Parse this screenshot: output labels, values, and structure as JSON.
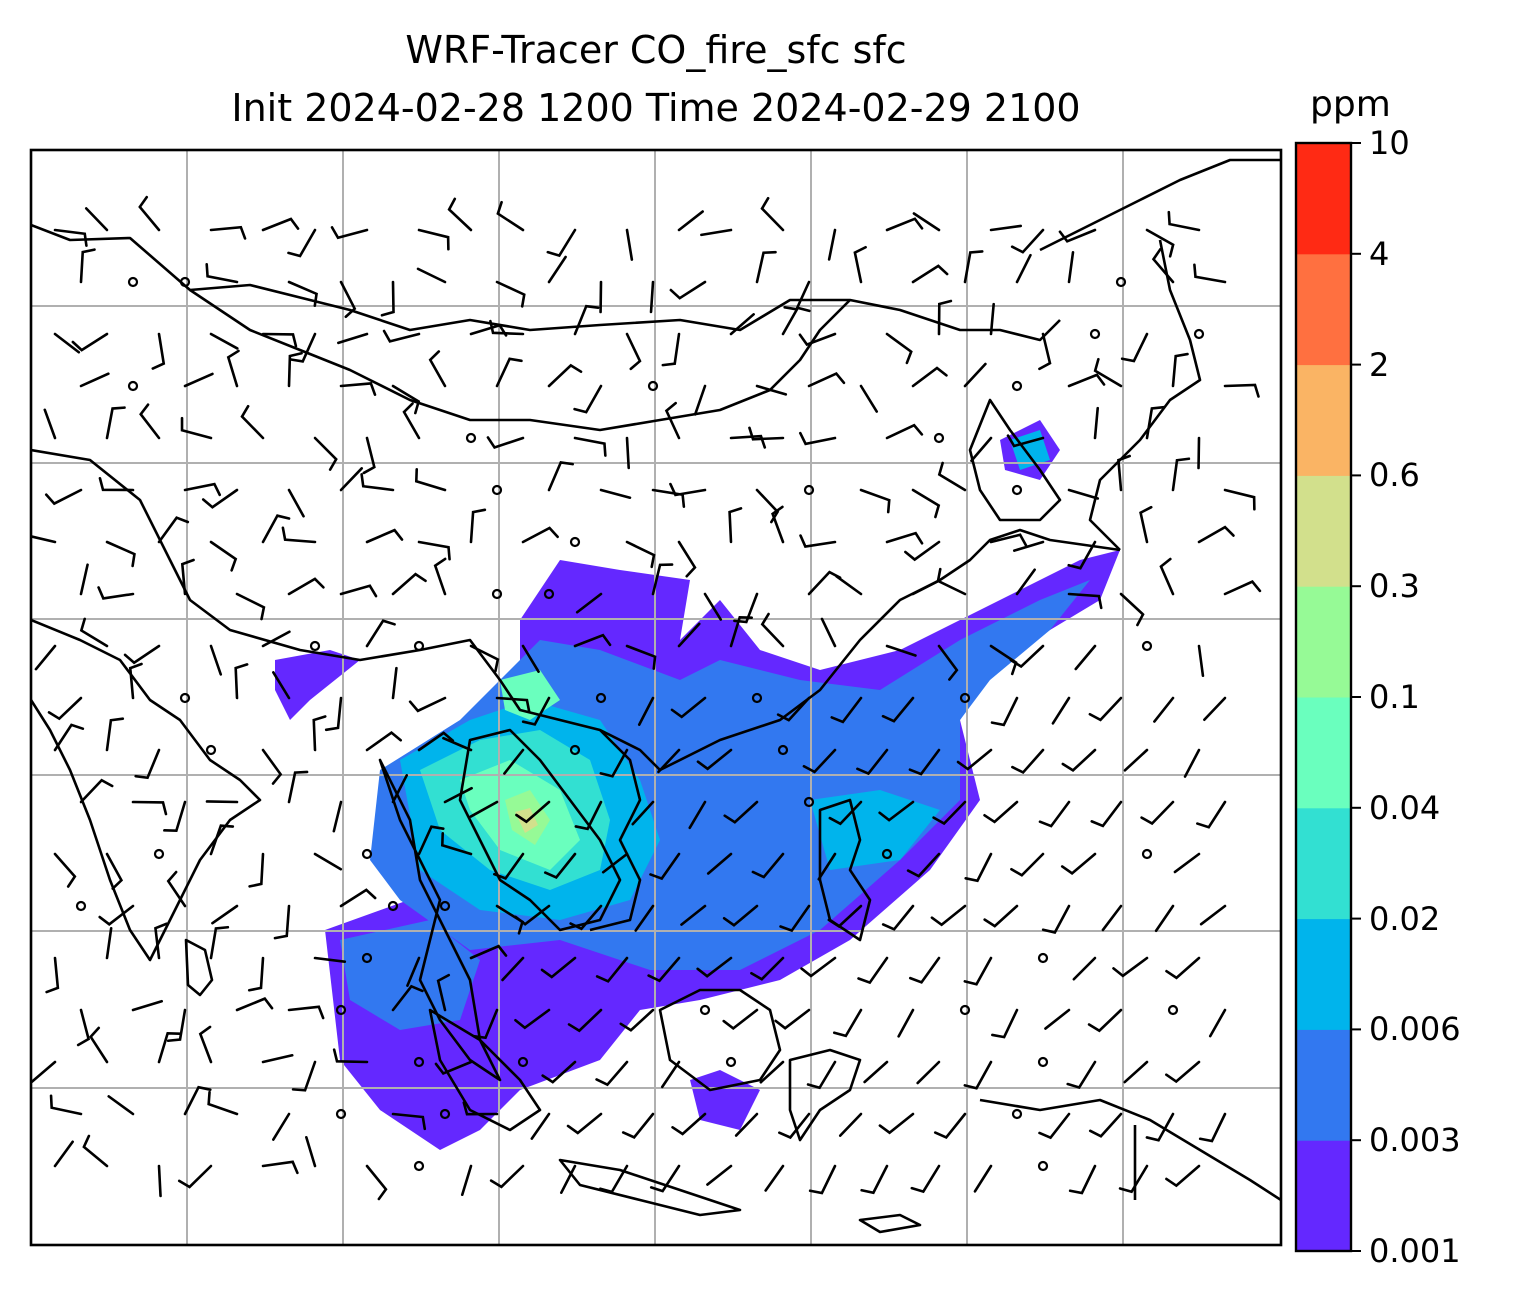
{
  "title": {
    "line1": "WRF-Tracer CO_fire_sfc sfc",
    "line2": "Init 2024-02-28 1200 Time 2024-02-29 2100"
  },
  "colorbar": {
    "units": "ppm",
    "levels": [
      "0.001",
      "0.003",
      "0.006",
      "0.02",
      "0.04",
      "0.1",
      "0.3",
      "0.6",
      "2",
      "4",
      "10"
    ],
    "colors": [
      "#6428ff",
      "#3278f0",
      "#00b4ec",
      "#32e0d2",
      "#6affbe",
      "#96fa96",
      "#d2e08c",
      "#fab464",
      "#ff7040",
      "#ff2a14"
    ]
  },
  "map": {
    "field": "CO_fire_sfc",
    "level": "sfc",
    "overlay": "wind barbs",
    "gridlines": true,
    "basemap": "coastlines and country borders"
  }
}
